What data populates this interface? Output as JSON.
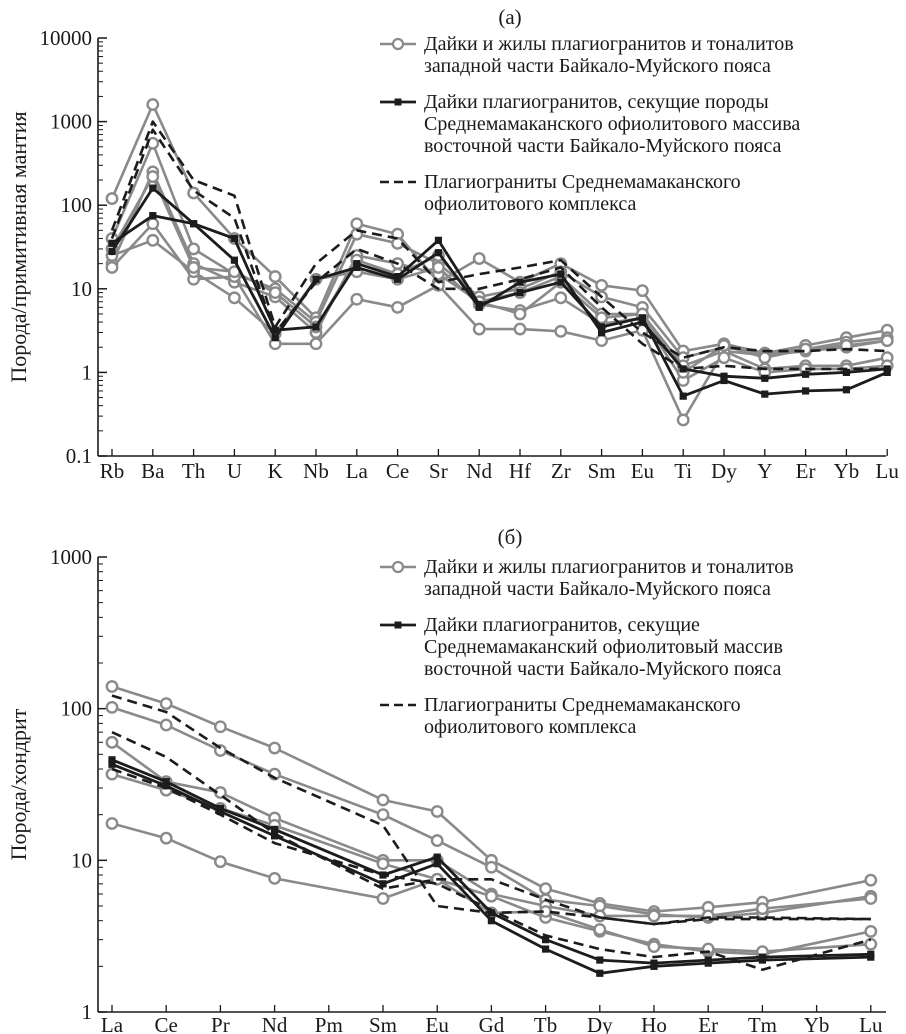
{
  "chart_data": [
    {
      "type": "line",
      "panel_label": "(а)",
      "ylabel": "Порода/примитивная мантия",
      "yscale": "log",
      "ylim": [
        0.1,
        10000
      ],
      "yticks": [
        "0.1",
        "1",
        "10",
        "100",
        "1000",
        "10000"
      ],
      "categories": [
        "Rb",
        "Ba",
        "Th",
        "U",
        "K",
        "Nb",
        "La",
        "Ce",
        "Sr",
        "Nd",
        "Hf",
        "Zr",
        "Sm",
        "Eu",
        "Ti",
        "Dy",
        "Y",
        "Er",
        "Yb",
        "Lu"
      ],
      "legend": [
        {
          "style": "gray-circle",
          "lines": [
            "Дайки и жилы плагиогранитов и тоналитов",
            "западной части Байкало-Муйского пояса"
          ]
        },
        {
          "style": "black-square",
          "lines": [
            "Дайки плагиогранитов, секущие породы",
            "Среднемамаканского офиолитового массива",
            "восточной части Байкало-Муйского пояса"
          ]
        },
        {
          "style": "dashed",
          "lines": [
            "Плагиограниты Среднемамаканского",
            "офиолитового комплекса"
          ]
        }
      ],
      "series": [
        {
          "group": "gray",
          "values": [
            120,
            1600,
            140,
            40,
            14,
            4.5,
            60,
            45,
            12,
            23,
            12,
            20,
            11,
            9.5,
            1.8,
            2.2,
            1.7,
            2.1,
            2.6,
            3.2
          ]
        },
        {
          "group": "gray",
          "values": [
            40,
            550,
            30,
            15,
            10,
            4,
            45,
            35,
            20,
            8,
            10,
            16,
            8,
            6,
            1.5,
            2,
            1.7,
            1.9,
            2.3,
            2.6
          ]
        },
        {
          "group": "gray",
          "values": [
            20,
            250,
            20,
            12,
            8,
            3,
            25,
            20,
            15,
            7,
            9,
            14,
            5,
            5,
            1.2,
            1.8,
            1.6,
            1.8,
            2,
            2.4
          ]
        },
        {
          "group": "gray",
          "values": [
            18,
            60,
            13,
            14,
            2.2,
            2.2,
            7.5,
            6,
            11,
            3.3,
            3.3,
            3.1,
            2.4,
            3.2,
            0.27,
            1.8,
            1.1,
            1.2,
            1.2,
            1.5
          ]
        },
        {
          "group": "gray",
          "values": [
            25,
            38,
            16,
            7.8,
            2.9,
            13,
            16,
            13,
            18,
            6.5,
            5.5,
            7.8,
            3.8,
            4.5,
            0.8,
            1.5,
            1,
            1.1,
            1.1,
            1.2
          ]
        },
        {
          "group": "gray",
          "values": [
            30,
            220,
            18,
            16,
            9,
            3.5,
            22,
            15,
            25,
            7,
            5,
            12,
            4.5,
            5,
            1,
            2.1,
            1.5,
            1.9,
            2.1,
            2.4
          ]
        },
        {
          "group": "black",
          "values": [
            28,
            160,
            60,
            40,
            3.2,
            3.5,
            20,
            14,
            38,
            6.5,
            9,
            12,
            3.5,
            4.5,
            0.52,
            0.8,
            0.55,
            0.6,
            0.62,
            1
          ]
        },
        {
          "group": "black",
          "values": [
            35,
            75,
            60,
            22,
            2.6,
            13,
            18,
            13,
            27,
            6,
            12,
            15,
            3,
            4,
            1.1,
            0.9,
            0.85,
            0.95,
            1,
            1.1
          ]
        },
        {
          "group": "dashed",
          "values": [
            50,
            1000,
            200,
            130,
            3.5,
            20,
            50,
            40,
            12,
            15,
            18,
            22,
            8,
            3,
            1.5,
            2,
            1.8,
            1.8,
            1.9,
            1.8
          ]
        },
        {
          "group": "dashed",
          "values": [
            40,
            800,
            150,
            70,
            3,
            12,
            30,
            20,
            10,
            10,
            13,
            18,
            6,
            2.2,
            1.1,
            1.2,
            1.1,
            1.1,
            1.1,
            1.1
          ]
        }
      ]
    },
    {
      "type": "line",
      "panel_label": "(б)",
      "ylabel": "Порода/хондрит",
      "yscale": "log",
      "ylim": [
        1,
        1000
      ],
      "yticks": [
        "1",
        "10",
        "100",
        "1000"
      ],
      "categories": [
        "La",
        "Ce",
        "Pr",
        "Nd",
        "Pm",
        "Sm",
        "Eu",
        "Gd",
        "Tb",
        "Dy",
        "Ho",
        "Er",
        "Tm",
        "Yb",
        "Lu"
      ],
      "legend": [
        {
          "style": "gray-circle",
          "lines": [
            "Дайки и жилы плагиогранитов и тоналитов",
            "западной части Байкало-Муйского пояса"
          ]
        },
        {
          "style": "black-square",
          "lines": [
            "Дайки плагиогранитов, секущие",
            "Среднемамаканский офиолитовый массив",
            "восточной части Байкало-Муйского пояса"
          ]
        },
        {
          "style": "dashed",
          "lines": [
            "Плагиограниты Среднемамаканского",
            "офиолитового комплекса"
          ]
        }
      ],
      "series": [
        {
          "group": "gray",
          "values": [
            140,
            108,
            76,
            55,
            null,
            25,
            21,
            10,
            6.5,
            5.2,
            4.6,
            4.9,
            5.3,
            null,
            7.4
          ]
        },
        {
          "group": "gray",
          "values": [
            102,
            78,
            53,
            37,
            null,
            20,
            13.5,
            9,
            5.5,
            5,
            4.4,
            4.2,
            4.5,
            null,
            5.8
          ]
        },
        {
          "group": "gray",
          "values": [
            60,
            33,
            28,
            19,
            null,
            10,
            10,
            6,
            5,
            4.3,
            4.3,
            4.3,
            4.8,
            null,
            5.6
          ]
        },
        {
          "group": "gray",
          "values": [
            37,
            29,
            22,
            17,
            null,
            9.5,
            7.5,
            5.8,
            4.2,
            3.4,
            2.8,
            2.5,
            2.4,
            null,
            3.4
          ]
        },
        {
          "group": "gray",
          "values": [
            17.5,
            14,
            9.8,
            7.6,
            null,
            5.6,
            7.5,
            4.5,
            4.6,
            3.5,
            2.7,
            2.6,
            2.5,
            null,
            2.8
          ]
        },
        {
          "group": "black",
          "values": [
            46,
            33,
            22,
            16,
            null,
            8,
            10.5,
            4.5,
            3,
            2.2,
            2.1,
            2.2,
            2.3,
            null,
            2.4
          ]
        },
        {
          "group": "black",
          "values": [
            43,
            31,
            21,
            14.5,
            null,
            7,
            9.5,
            4,
            2.6,
            1.8,
            2,
            2.1,
            2.2,
            null,
            2.3
          ]
        },
        {
          "group": "dashed",
          "values": [
            122,
            95,
            55,
            35,
            null,
            17,
            5,
            4.5,
            4.6,
            4.2,
            3.8,
            4.1,
            4.1,
            null,
            4.1
          ]
        },
        {
          "group": "dashed",
          "values": [
            70,
            48,
            27,
            15,
            null,
            6.5,
            7.5,
            7.5,
            5.5,
            4.2,
            3.8,
            4.2,
            4.2,
            null,
            4.1
          ]
        },
        {
          "group": "dashed",
          "values": [
            40,
            30,
            20,
            13,
            null,
            8,
            7,
            4.7,
            3.2,
            2.6,
            2.3,
            2.5,
            1.9,
            null,
            3
          ]
        }
      ]
    }
  ]
}
